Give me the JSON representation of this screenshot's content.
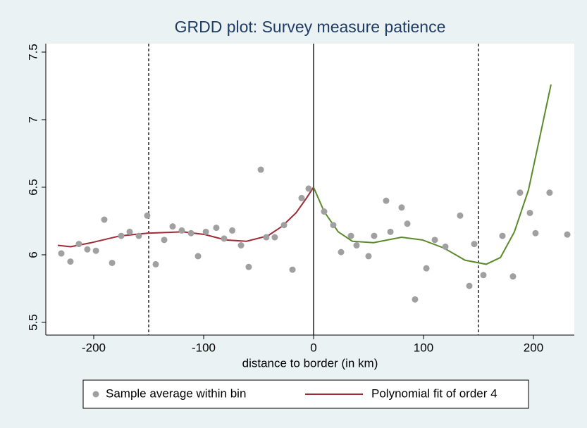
{
  "chart_data": {
    "type": "scatter",
    "title": "GRDD plot: Survey measure patience",
    "x_label": "distance to border (in km)",
    "xlim": [
      -243.6,
      237.2
    ],
    "ylim": [
      5.406,
      7.5625
    ],
    "xticks": [
      -200,
      -100,
      0,
      100,
      200
    ],
    "yticks": [
      5.5,
      6,
      6.5,
      7,
      7.5
    ],
    "grid": false,
    "vlines": [
      {
        "x": -150,
        "style": "dashed"
      },
      {
        "x": 0,
        "style": "solid"
      },
      {
        "x": 150,
        "style": "dashed"
      }
    ],
    "scatter": {
      "name": "Sample average within bin",
      "color": "#a0a0a0",
      "x": [
        -229.5,
        -221.2,
        -213.5,
        -205.8,
        -198,
        -190.4,
        -183.3,
        -175,
        -167.3,
        -159,
        -151.3,
        -143.6,
        -135.9,
        -128.2,
        -119.9,
        -111.5,
        -105.1,
        -98,
        -88.5,
        -81.4,
        -74,
        -66,
        -59,
        -48,
        -43,
        -35.3,
        -26.9,
        -19.2,
        -10.9,
        -4.5,
        9.6,
        17.9,
        25,
        34,
        39.1,
        50,
        55.1,
        66,
        69.9,
        80.1,
        85.3,
        92.3,
        102.6,
        110.3,
        119.9,
        133.3,
        141.7,
        146.2,
        154.5,
        171.8,
        181.4,
        187.8,
        196.8,
        201.9,
        214.7,
        230.8
      ],
      "values": [
        6.01,
        5.95,
        6.08,
        6.04,
        6.03,
        6.26,
        5.94,
        6.14,
        6.17,
        6.14,
        6.29,
        5.93,
        6.11,
        6.21,
        6.18,
        6.16,
        5.99,
        6.17,
        6.2,
        6.12,
        6.18,
        6.07,
        5.91,
        6.63,
        6.13,
        6.13,
        6.22,
        5.89,
        6.42,
        6.49,
        6.32,
        6.22,
        6.02,
        6.14,
        6.07,
        5.99,
        6.14,
        6.4,
        6.17,
        6.35,
        6.23,
        5.67,
        5.9,
        6.11,
        6.06,
        6.29,
        5.77,
        6.08,
        5.85,
        6.14,
        5.84,
        6.46,
        6.31,
        6.16,
        6.46,
        6.15
      ]
    },
    "fits": [
      {
        "name": "Polynomial fit of order 4",
        "color": "#9e2a35",
        "x": [
          -232.7,
          -221,
          -202,
          -176,
          -151,
          -118.6,
          -99,
          -80,
          -61,
          -41.7,
          -28.8,
          -16,
          -6.4,
          0
        ],
        "values": [
          6.07,
          6.06,
          6.09,
          6.14,
          6.16,
          6.17,
          6.15,
          6.11,
          6.1,
          6.14,
          6.21,
          6.31,
          6.42,
          6.5
        ]
      },
      {
        "color": "#5b8a2a",
        "x": [
          0,
          9.6,
          22.4,
          35.3,
          54.5,
          80,
          99,
          118.6,
          137.8,
          157,
          170,
          182.7,
          195.5,
          205,
          216
        ],
        "values": [
          6.5,
          6.32,
          6.17,
          6.1,
          6.09,
          6.13,
          6.11,
          6.05,
          5.96,
          5.93,
          5.98,
          6.17,
          6.48,
          6.84,
          7.26
        ]
      }
    ]
  }
}
